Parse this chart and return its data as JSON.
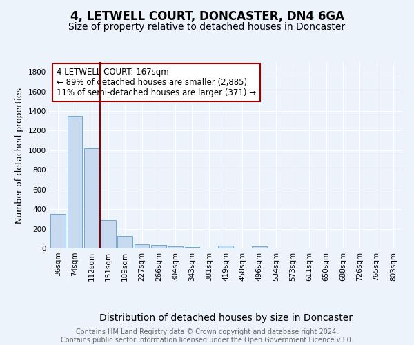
{
  "title": "4, LETWELL COURT, DONCASTER, DN4 6GA",
  "subtitle": "Size of property relative to detached houses in Doncaster",
  "xlabel": "Distribution of detached houses by size in Doncaster",
  "ylabel": "Number of detached properties",
  "categories": [
    "36sqm",
    "74sqm",
    "112sqm",
    "151sqm",
    "189sqm",
    "227sqm",
    "266sqm",
    "304sqm",
    "343sqm",
    "381sqm",
    "419sqm",
    "458sqm",
    "496sqm",
    "534sqm",
    "573sqm",
    "611sqm",
    "650sqm",
    "688sqm",
    "726sqm",
    "765sqm",
    "803sqm"
  ],
  "values": [
    350,
    1350,
    1020,
    290,
    130,
    42,
    32,
    22,
    15,
    0,
    25,
    0,
    22,
    0,
    0,
    0,
    0,
    0,
    0,
    0,
    0
  ],
  "bar_color": "#c8daf0",
  "bar_edge_color": "#6aaad4",
  "vline_x_index": 2.5,
  "vline_color": "#8b0000",
  "annotation_text": "4 LETWELL COURT: 167sqm\n← 89% of detached houses are smaller (2,885)\n11% of semi-detached houses are larger (371) →",
  "annotation_box_color": "white",
  "annotation_box_edge_color": "#9b0000",
  "ylim": [
    0,
    1900
  ],
  "yticks": [
    0,
    200,
    400,
    600,
    800,
    1000,
    1200,
    1400,
    1600,
    1800
  ],
  "footer_text": "Contains HM Land Registry data © Crown copyright and database right 2024.\nContains public sector information licensed under the Open Government Licence v3.0.",
  "bg_color": "#edf3fb",
  "plot_bg_color": "#edf3fb",
  "grid_color": "#ffffff",
  "title_fontsize": 12,
  "subtitle_fontsize": 10,
  "xlabel_fontsize": 10,
  "ylabel_fontsize": 9,
  "tick_fontsize": 7.5,
  "footer_fontsize": 7,
  "annotation_fontsize": 8.5
}
